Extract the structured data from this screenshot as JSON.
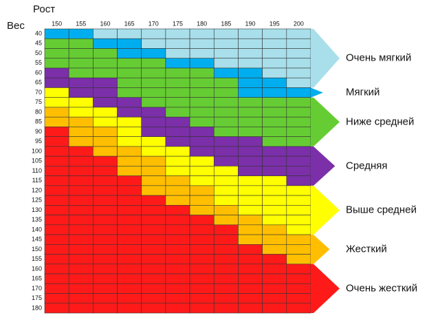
{
  "header": {
    "height_label": "Рост",
    "weight_label": "Вес"
  },
  "columns": [
    150,
    155,
    160,
    165,
    170,
    175,
    180,
    185,
    190,
    195,
    200
  ],
  "rows": [
    40,
    45,
    50,
    55,
    60,
    65,
    70,
    75,
    80,
    85,
    90,
    95,
    100,
    105,
    110,
    115,
    120,
    125,
    130,
    135,
    140,
    145,
    150,
    155,
    160,
    165,
    170,
    175,
    180
  ],
  "legend": [
    {
      "label": "Очень мягкий",
      "color": "#a8dfeb"
    },
    {
      "label": "Мягкий",
      "color": "#00aeef"
    },
    {
      "label": "Ниже средней",
      "color": "#66cc33"
    },
    {
      "label": "Средняя",
      "color": "#7b2fa8"
    },
    {
      "label": "Выше средней",
      "color": "#ffff00"
    },
    {
      "label": "Жесткий",
      "color": "#ffbf00"
    },
    {
      "label": "Очень жесткий",
      "color": "#ff1a1a"
    }
  ],
  "cells": [
    [
      1,
      1,
      0,
      0,
      0,
      0,
      0,
      0,
      0,
      0,
      0
    ],
    [
      2,
      2,
      1,
      1,
      0,
      0,
      0,
      0,
      0,
      0,
      0
    ],
    [
      2,
      2,
      2,
      1,
      1,
      0,
      0,
      0,
      0,
      0,
      0
    ],
    [
      2,
      2,
      2,
      2,
      2,
      1,
      1,
      0,
      0,
      0,
      0
    ],
    [
      3,
      2,
      2,
      2,
      2,
      2,
      2,
      1,
      1,
      0,
      0
    ],
    [
      3,
      3,
      3,
      2,
      2,
      2,
      2,
      2,
      1,
      1,
      0
    ],
    [
      4,
      3,
      3,
      2,
      2,
      2,
      2,
      2,
      1,
      1,
      1
    ],
    [
      4,
      4,
      3,
      3,
      2,
      2,
      2,
      2,
      2,
      2,
      2
    ],
    [
      5,
      4,
      4,
      3,
      3,
      2,
      2,
      2,
      2,
      2,
      2
    ],
    [
      5,
      5,
      4,
      4,
      3,
      3,
      2,
      2,
      2,
      2,
      2
    ],
    [
      6,
      5,
      5,
      4,
      3,
      3,
      3,
      2,
      2,
      2,
      2
    ],
    [
      6,
      5,
      5,
      4,
      4,
      3,
      3,
      3,
      3,
      2,
      2
    ],
    [
      6,
      6,
      5,
      5,
      4,
      4,
      3,
      3,
      3,
      3,
      3
    ],
    [
      6,
      6,
      6,
      5,
      5,
      4,
      4,
      3,
      3,
      3,
      3
    ],
    [
      6,
      6,
      6,
      5,
      5,
      4,
      4,
      4,
      3,
      3,
      3
    ],
    [
      6,
      6,
      6,
      6,
      5,
      5,
      4,
      4,
      4,
      4,
      3
    ],
    [
      6,
      6,
      6,
      6,
      5,
      5,
      5,
      4,
      4,
      4,
      4
    ],
    [
      6,
      6,
      6,
      6,
      6,
      5,
      5,
      4,
      4,
      4,
      4
    ],
    [
      6,
      6,
      6,
      6,
      6,
      6,
      5,
      5,
      4,
      4,
      4
    ],
    [
      6,
      6,
      6,
      6,
      6,
      6,
      6,
      5,
      5,
      4,
      4
    ],
    [
      6,
      6,
      6,
      6,
      6,
      6,
      6,
      6,
      5,
      5,
      4
    ],
    [
      6,
      6,
      6,
      6,
      6,
      6,
      6,
      6,
      5,
      5,
      5
    ],
    [
      6,
      6,
      6,
      6,
      6,
      6,
      6,
      6,
      6,
      5,
      5
    ],
    [
      6,
      6,
      6,
      6,
      6,
      6,
      6,
      6,
      6,
      6,
      5
    ],
    [
      6,
      6,
      6,
      6,
      6,
      6,
      6,
      6,
      6,
      6,
      6
    ],
    [
      6,
      6,
      6,
      6,
      6,
      6,
      6,
      6,
      6,
      6,
      6
    ],
    [
      6,
      6,
      6,
      6,
      6,
      6,
      6,
      6,
      6,
      6,
      6
    ],
    [
      6,
      6,
      6,
      6,
      6,
      6,
      6,
      6,
      6,
      6,
      6
    ],
    [
      6,
      6,
      6,
      6,
      6,
      6,
      6,
      6,
      6,
      6,
      6
    ]
  ]
}
